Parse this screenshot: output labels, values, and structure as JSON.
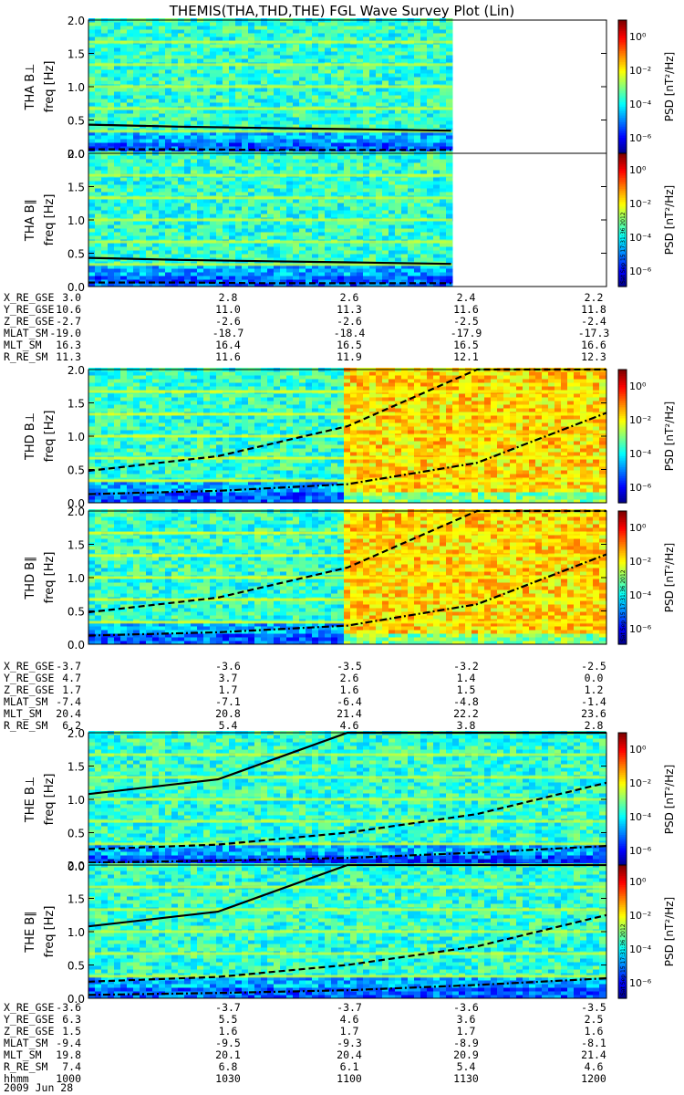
{
  "title": "THEMIS(THA,THD,THE) FGL Wave Survey Plot (Lin)",
  "colorbar": {
    "label": "PSD [nT²/Hz]",
    "ticks": [
      "10⁰",
      "10⁻²",
      "10⁻⁴",
      "10⁻⁶"
    ]
  },
  "stamp": "Sat Sep 15 17:31:36 2012",
  "freq_label": "freq [Hz]",
  "chart_data": [
    {
      "type": "heatmap",
      "probe": "THA",
      "component": "B⊥",
      "ylabel": "THA B⊥",
      "ylim": [
        0,
        2.0
      ],
      "yticks": [
        "0.0",
        "0.5",
        "1.0",
        "1.5",
        "2.0"
      ],
      "data_coverage_fraction": 0.7,
      "curves": [
        {
          "style": "solid",
          "values": [
            0.43,
            0.4,
            0.38,
            0.36,
            0.34
          ]
        },
        {
          "style": "dashed",
          "values": [
            0.06,
            0.06,
            0.05,
            0.05,
            0.05
          ]
        }
      ]
    },
    {
      "type": "heatmap",
      "probe": "THA",
      "component": "B∥",
      "ylabel": "THA B∥",
      "ylim": [
        0,
        2.0
      ],
      "yticks": [
        "0.0",
        "0.5",
        "1.0",
        "1.5",
        "2.0"
      ],
      "data_coverage_fraction": 0.7,
      "curves": [
        {
          "style": "solid",
          "values": [
            0.43,
            0.4,
            0.38,
            0.36,
            0.34
          ]
        },
        {
          "style": "dashed",
          "values": [
            0.06,
            0.06,
            0.05,
            0.05,
            0.05
          ]
        }
      ]
    },
    {
      "type": "heatmap",
      "probe": "THD",
      "component": "B⊥",
      "ylabel": "THD B⊥",
      "ylim": [
        0,
        2.0
      ],
      "yticks": [
        "0.0",
        "0.5",
        "1.0",
        "1.5",
        "2.0"
      ],
      "data_coverage_fraction": 1.0,
      "enhanced_from_fraction": 0.49,
      "curves": [
        {
          "style": "dashed",
          "values": [
            0.48,
            0.7,
            1.15,
            2.05,
            2.05
          ]
        },
        {
          "style": "dashdot",
          "values": [
            0.13,
            0.18,
            0.28,
            0.6,
            1.35
          ]
        }
      ]
    },
    {
      "type": "heatmap",
      "probe": "THD",
      "component": "B∥",
      "ylabel": "THD B∥",
      "ylim": [
        0,
        2.0
      ],
      "yticks": [
        "0.0",
        "0.5",
        "1.0",
        "1.5",
        "2.0"
      ],
      "data_coverage_fraction": 1.0,
      "enhanced_from_fraction": 0.49,
      "curves": [
        {
          "style": "dashed",
          "values": [
            0.48,
            0.7,
            1.15,
            2.05,
            2.05
          ]
        },
        {
          "style": "dashdot",
          "values": [
            0.13,
            0.18,
            0.28,
            0.6,
            1.35
          ]
        }
      ]
    },
    {
      "type": "heatmap",
      "probe": "THE",
      "component": "B⊥",
      "ylabel": "THE B⊥",
      "ylim": [
        0,
        2.0
      ],
      "yticks": [
        "0.0",
        "0.5",
        "1.0",
        "1.5",
        "2.0"
      ],
      "data_coverage_fraction": 1.0,
      "curves": [
        {
          "style": "solid",
          "values": [
            1.08,
            1.3,
            2.0,
            2.05,
            2.05
          ]
        },
        {
          "style": "dashed",
          "values": [
            0.25,
            0.32,
            0.5,
            0.78,
            1.25
          ]
        },
        {
          "style": "dashdot",
          "values": [
            0.05,
            0.08,
            0.12,
            0.2,
            0.3
          ]
        }
      ]
    },
    {
      "type": "heatmap",
      "probe": "THE",
      "component": "B∥",
      "ylabel": "THE B∥",
      "ylim": [
        0,
        2.0
      ],
      "yticks": [
        "0.0",
        "0.5",
        "1.0",
        "1.5",
        "2.0"
      ],
      "data_coverage_fraction": 1.0,
      "curves": [
        {
          "style": "solid",
          "values": [
            1.08,
            1.3,
            2.0,
            2.05,
            2.05
          ]
        },
        {
          "style": "dashed",
          "values": [
            0.25,
            0.32,
            0.5,
            0.78,
            1.25
          ]
        },
        {
          "style": "dashdot",
          "values": [
            0.05,
            0.08,
            0.12,
            0.2,
            0.3
          ]
        }
      ]
    }
  ],
  "ephemeris": [
    {
      "probe": "THA",
      "rows": [
        {
          "label": "X_RE_GSE",
          "values": [
            "3.0",
            "2.8",
            "2.6",
            "2.4",
            "2.2"
          ]
        },
        {
          "label": "Y_RE_GSE",
          "values": [
            "10.6",
            "11.0",
            "11.3",
            "11.6",
            "11.8"
          ]
        },
        {
          "label": "Z_RE_GSE",
          "values": [
            "-2.7",
            "-2.6",
            "-2.6",
            "-2.5",
            "-2.4"
          ]
        },
        {
          "label": "MLAT_SM",
          "values": [
            "-19.0",
            "-18.7",
            "-18.4",
            "-17.9",
            "-17.3"
          ]
        },
        {
          "label": "MLT_SM",
          "values": [
            "16.3",
            "16.4",
            "16.5",
            "16.5",
            "16.6"
          ]
        },
        {
          "label": "R_RE_SM",
          "values": [
            "11.3",
            "11.6",
            "11.9",
            "12.1",
            "12.3"
          ]
        }
      ]
    },
    {
      "probe": "THD",
      "rows": [
        {
          "label": "X_RE_GSE",
          "values": [
            "-3.7",
            "-3.6",
            "-3.5",
            "-3.2",
            "-2.5"
          ]
        },
        {
          "label": "Y_RE_GSE",
          "values": [
            "4.7",
            "3.7",
            "2.6",
            "1.4",
            "0.0"
          ]
        },
        {
          "label": "Z_RE_GSE",
          "values": [
            "1.7",
            "1.7",
            "1.6",
            "1.5",
            "1.2"
          ]
        },
        {
          "label": "MLAT_SM",
          "values": [
            "-7.4",
            "-7.1",
            "-6.4",
            "-4.8",
            "-1.4"
          ]
        },
        {
          "label": "MLT_SM",
          "values": [
            "20.4",
            "20.8",
            "21.4",
            "22.2",
            "23.6"
          ]
        },
        {
          "label": "R_RE_SM",
          "values": [
            "6.2",
            "5.4",
            "4.6",
            "3.8",
            "2.8"
          ]
        }
      ]
    },
    {
      "probe": "THE",
      "rows": [
        {
          "label": "X_RE_GSE",
          "values": [
            "-3.6",
            "-3.7",
            "-3.7",
            "-3.6",
            "-3.5"
          ]
        },
        {
          "label": "Y_RE_GSE",
          "values": [
            "6.3",
            "5.5",
            "4.6",
            "3.6",
            "2.5"
          ]
        },
        {
          "label": "Z_RE_GSE",
          "values": [
            "1.5",
            "1.6",
            "1.7",
            "1.7",
            "1.6"
          ]
        },
        {
          "label": "MLAT_SM",
          "values": [
            "-9.4",
            "-9.5",
            "-9.3",
            "-8.9",
            "-8.1"
          ]
        },
        {
          "label": "MLT_SM",
          "values": [
            "19.8",
            "20.1",
            "20.4",
            "20.9",
            "21.4"
          ]
        },
        {
          "label": "R_RE_SM",
          "values": [
            "7.4",
            "6.8",
            "6.1",
            "5.4",
            "4.6"
          ]
        },
        {
          "label": "hhmm",
          "values": [
            "1000",
            "1030",
            "1100",
            "1130",
            "1200"
          ]
        }
      ]
    }
  ],
  "date": "2009 Jun 28"
}
